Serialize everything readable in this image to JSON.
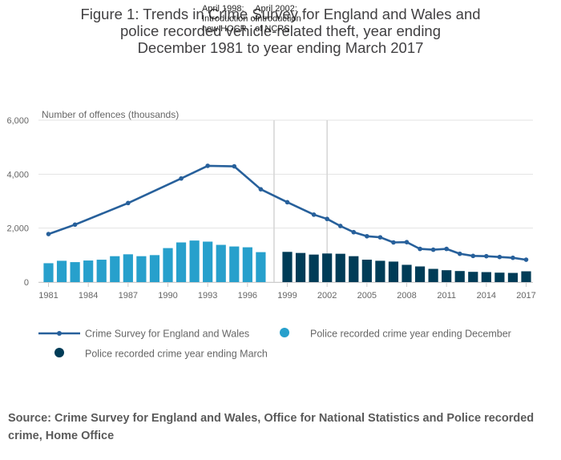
{
  "chart_data": {
    "type": "bar",
    "title": "Figure 1: Trends in Crime Survey for England and Wales and police recorded vehicle-related theft, year ending December 1981 to year ending March 2017",
    "ylabel": "Number of offences (thousands)",
    "xlabel": "",
    "ylim": [
      0,
      6000
    ],
    "yticks": [
      "0",
      "2,000",
      "4,000",
      "6,000"
    ],
    "xticks": [
      "1981",
      "1984",
      "1987",
      "1990",
      "1993",
      "1996",
      "1999",
      "2002",
      "2005",
      "2008",
      "2011",
      "2014",
      "2017"
    ],
    "grid": true,
    "legend_position": "bottom",
    "annotations": [
      {
        "at": 1998,
        "text": [
          "April 1998:",
          "Introduction of",
          "new HOCR"
        ]
      },
      {
        "at": 2002,
        "text": [
          "April 2002:",
          "Introduction",
          "of NCRS"
        ]
      }
    ],
    "series": [
      {
        "name": "Crime Survey for England and Wales",
        "kind": "line",
        "color": "#27609b",
        "x": [
          1981,
          1983,
          1987,
          1991,
          1993,
          1995,
          1997,
          1999,
          2001,
          2002,
          2003,
          2004,
          2005,
          2006,
          2007,
          2008,
          2009,
          2010,
          2011,
          2012,
          2013,
          2014,
          2015,
          2016,
          2017
        ],
        "values": [
          1780,
          2130,
          2930,
          3840,
          4310,
          4290,
          3440,
          2960,
          2500,
          2340,
          2080,
          1850,
          1700,
          1660,
          1470,
          1480,
          1230,
          1200,
          1230,
          1050,
          970,
          960,
          930,
          900,
          830
        ]
      },
      {
        "name": "Police recorded crime year ending December",
        "kind": "bar",
        "color": "#27a0cc",
        "x": [
          1981,
          1982,
          1983,
          1984,
          1985,
          1986,
          1987,
          1988,
          1989,
          1990,
          1991,
          1992,
          1993,
          1994,
          1995,
          1996,
          1997
        ],
        "values": [
          700,
          790,
          740,
          800,
          830,
          960,
          1030,
          960,
          1000,
          1260,
          1470,
          1540,
          1500,
          1380,
          1320,
          1290,
          1110
        ]
      },
      {
        "name": "Police recorded crime year ending March",
        "kind": "bar",
        "color": "#003c57",
        "x": [
          1999,
          2000,
          2001,
          2002,
          2003,
          2004,
          2005,
          2006,
          2007,
          2008,
          2009,
          2010,
          2011,
          2012,
          2013,
          2014,
          2015,
          2016,
          2017
        ],
        "values": [
          1120,
          1080,
          1020,
          1060,
          1050,
          960,
          830,
          790,
          760,
          640,
          580,
          490,
          440,
          410,
          380,
          370,
          350,
          340,
          400
        ]
      }
    ]
  },
  "source": "Source: Crime Survey for England and Wales, Office for National Statistics and Police recorded crime, Home Office"
}
